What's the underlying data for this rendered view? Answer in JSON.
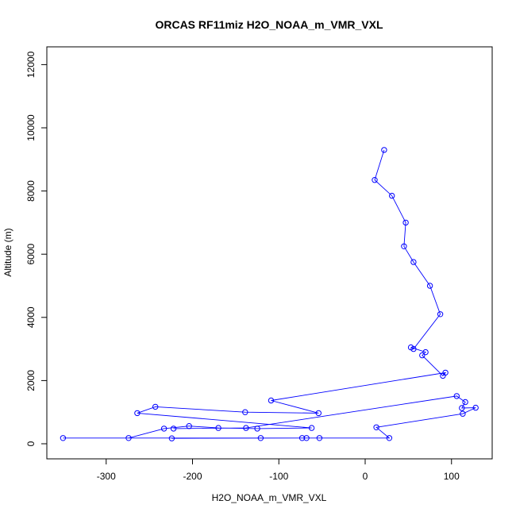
{
  "chart_data": {
    "type": "line",
    "title": "ORCAS RF11miz H2O_NOAA_m_VMR_VXL",
    "xlabel": "H2O_NOAA_m_VMR_VXL",
    "ylabel": "Altitude (m)",
    "xlim": [
      -350,
      130
    ],
    "ylim": [
      0,
      12500
    ],
    "xticks": [
      -300,
      -200,
      -100,
      0,
      100
    ],
    "yticks": [
      0,
      2000,
      4000,
      6000,
      8000,
      10000,
      12000
    ],
    "grid": false,
    "legend": "none",
    "marker": "open-circle",
    "color": "#0000ff",
    "series": [
      {
        "points": [
          [
            22,
            9300
          ],
          [
            11,
            8350
          ],
          [
            31,
            7850
          ],
          [
            47,
            7000
          ],
          [
            45,
            6250
          ],
          [
            56,
            5750
          ],
          [
            75,
            5000
          ],
          [
            87,
            4100
          ],
          [
            56,
            3000
          ],
          [
            53,
            3050
          ],
          [
            70,
            2900
          ],
          [
            66,
            2800
          ],
          [
            90,
            2150
          ],
          [
            93,
            2250
          ],
          [
            -109,
            1370
          ],
          [
            -54,
            970
          ],
          [
            -139,
            1000
          ],
          [
            -243,
            1170
          ],
          [
            -264,
            970
          ],
          [
            -62,
            500
          ],
          [
            -125,
            480
          ],
          [
            -170,
            500
          ],
          [
            -204,
            560
          ],
          [
            -233,
            480
          ],
          [
            -274,
            180
          ],
          [
            -350,
            180
          ],
          [
            -53,
            180
          ],
          [
            -68,
            180
          ],
          [
            -224,
            170
          ],
          [
            -121,
            180
          ],
          [
            -73,
            180
          ],
          [
            28,
            180
          ],
          [
            13,
            520
          ],
          [
            113,
            950
          ],
          [
            128,
            1140
          ],
          [
            112,
            1130
          ],
          [
            116,
            1320
          ],
          [
            106,
            1510
          ],
          [
            -138,
            500
          ],
          [
            -222,
            480
          ]
        ]
      }
    ]
  }
}
